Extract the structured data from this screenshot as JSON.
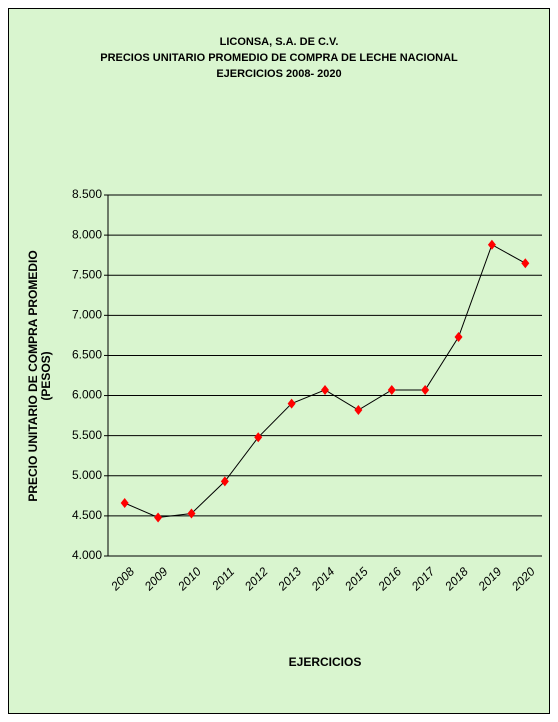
{
  "chart_data": {
    "type": "line",
    "title": [
      "LICONSA, S.A. DE C.V.",
      "PRECIOS UNITARIO PROMEDIO DE COMPRA DE LECHE NACIONAL",
      "EJERCICIOS 2008- 2020"
    ],
    "ylabel": [
      "PRECIO UNITARIO DE COMPRA PROMEDIO",
      "(PESOS)"
    ],
    "xlabel": "EJERCICIOS",
    "categories": [
      "2008",
      "2009",
      "2010",
      "2011",
      "2012",
      "2013",
      "2014",
      "2015",
      "2016",
      "2017",
      "2018",
      "2019",
      "2020"
    ],
    "series": [
      {
        "color": "#ff0000",
        "line_color": "#000000",
        "values": [
          4.66,
          4.48,
          4.53,
          4.93,
          5.48,
          5.9,
          6.07,
          5.82,
          6.07,
          6.07,
          6.73,
          7.88,
          7.65
        ]
      }
    ],
    "ylim": [
      4.0,
      8.5
    ],
    "yticks": [
      {
        "value": 4.0,
        "label": "4.000"
      },
      {
        "value": 4.5,
        "label": "4.500"
      },
      {
        "value": 5.0,
        "label": "5.000"
      },
      {
        "value": 5.5,
        "label": "5.500"
      },
      {
        "value": 6.0,
        "label": "6.000"
      },
      {
        "value": 6.5,
        "label": "6.500"
      },
      {
        "value": 7.0,
        "label": "7.000"
      },
      {
        "value": 7.5,
        "label": "7.500"
      },
      {
        "value": 8.0,
        "label": "8.000"
      },
      {
        "value": 8.5,
        "label": "8.500"
      }
    ],
    "grid": true,
    "background": "#d9f5cf"
  }
}
